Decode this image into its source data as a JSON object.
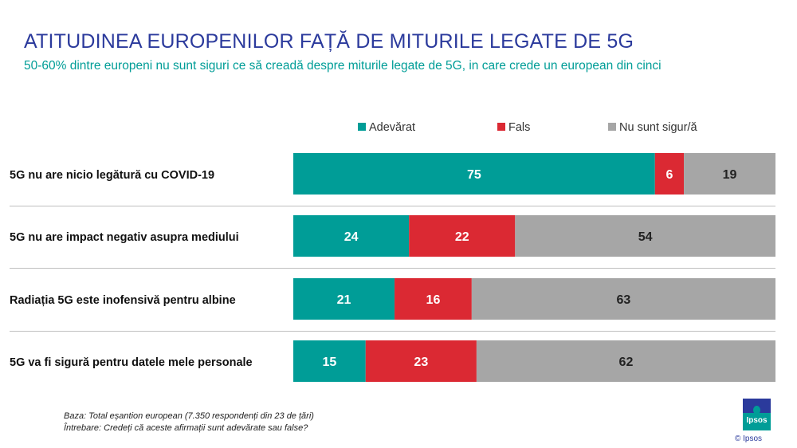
{
  "title": "ATITUDINEA EUROPENILOR FAȚĂ DE MITURILE LEGATE DE 5G",
  "subtitle": "50-60% dintre europeni nu sunt siguri ce să creadă despre miturile legate de 5G, in care crede un european din cinci",
  "colors": {
    "adevarat": "#009d97",
    "fals": "#db2933",
    "nesigur": "#a6a6a6",
    "title": "#2b3a9c",
    "subtitle": "#009d97"
  },
  "chart_data": {
    "type": "bar",
    "orientation": "horizontal",
    "stacked": true,
    "xlim": [
      0,
      100
    ],
    "categories": [
      "5G nu are nicio legătură cu COVID-19",
      "5G nu are impact negativ asupra mediului",
      "Radiația 5G este inofensivă pentru albine",
      "5G va fi sigură pentru datele mele personale"
    ],
    "series": [
      {
        "name": "Adevărat",
        "values": [
          75,
          24,
          21,
          15
        ]
      },
      {
        "name": "Fals",
        "values": [
          6,
          22,
          16,
          23
        ]
      },
      {
        "name": "Nu sunt sigur/ă",
        "values": [
          19,
          54,
          63,
          62
        ]
      }
    ],
    "legend_position": "top"
  },
  "footer": {
    "base": "Baza: Total eșantion european (7.350 respondenți din 23 de țări)",
    "question": "Întrebare: Credeți că aceste afirmații sunt adevărate sau false?"
  },
  "logo": {
    "text": "Ipsos",
    "copyright": "© Ipsos"
  }
}
